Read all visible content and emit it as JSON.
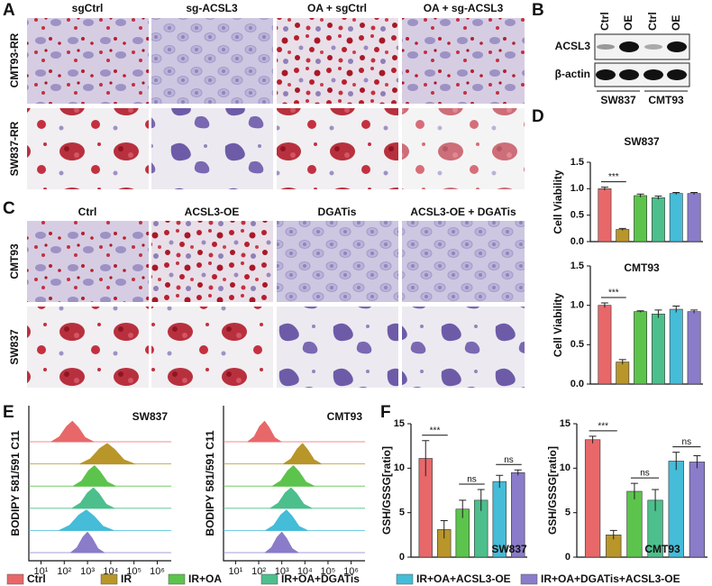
{
  "panel_labels": [
    "A",
    "B",
    "C",
    "D",
    "E",
    "F"
  ],
  "panel_a": {
    "columns": [
      "sgCtrl",
      "sg-ACSL3",
      "OA + sgCtrl",
      "OA + sg-ACSL3"
    ],
    "rows": [
      "CMT93-RR",
      "SW837-RR"
    ]
  },
  "panel_b": {
    "lanes": [
      "Ctrl",
      "OE",
      "Ctrl",
      "OE"
    ],
    "proteins": [
      "ACSL3",
      "β-actin"
    ],
    "cell_lines": [
      "SW837",
      "CMT93"
    ]
  },
  "panel_c": {
    "columns": [
      "Ctrl",
      "ACSL3-OE",
      "DGATis",
      "ACSL3-OE + DGATis"
    ],
    "rows": [
      "CMT93",
      "SW837"
    ]
  },
  "chart_data": [
    {
      "type": "bar",
      "title": "SW837",
      "ylabel": "Cell Viability",
      "categories": [
        null,
        null,
        null,
        null,
        null,
        null
      ],
      "values": [
        1.0,
        0.23,
        0.87,
        0.83,
        0.91,
        0.91
      ],
      "errors": [
        0.03,
        0.02,
        0.03,
        0.03,
        0.02,
        0.02
      ],
      "colors": [
        "#e8686a",
        "#b8962a",
        "#5cc44c",
        "#4cbf8c",
        "#45bcd8",
        "#8a7cc9"
      ],
      "ylim": [
        0,
        1.5
      ],
      "yticks": [
        {
          "value": 0,
          "label": "0.0"
        },
        0.5,
        {
          "value": 1,
          "label": "1.0"
        },
        1.5
      ],
      "annotations": [
        "***"
      ]
    },
    {
      "type": "bar",
      "title": "CMT93",
      "ylabel": "Cell Viability",
      "categories": [
        null,
        null,
        null,
        null,
        null,
        null
      ],
      "values": [
        1.0,
        0.28,
        0.92,
        0.89,
        0.95,
        0.92
      ],
      "errors": [
        0.03,
        0.03,
        0.01,
        0.05,
        0.04,
        0.02
      ],
      "colors": [
        "#e8686a",
        "#b8962a",
        "#5cc44c",
        "#4cbf8c",
        "#45bcd8",
        "#8a7cc9"
      ],
      "ylim": [
        0,
        1.5
      ],
      "yticks": [
        {
          "value": 0,
          "label": "0.0"
        },
        0.5,
        {
          "value": 1,
          "label": "1.0"
        },
        1.5
      ],
      "annotations": [
        "***"
      ]
    },
    {
      "type": "density",
      "title": "SW837",
      "ylabel": "BODIPY 581/591 C11",
      "log_x": true,
      "xlim": [
        3,
        4000000
      ],
      "ylim": [
        0,
        1
      ],
      "xticks": [
        {
          "value": 10,
          "label": "10¹"
        },
        {
          "value": 100,
          "label": "10²"
        },
        {
          "value": 1000,
          "label": "10³"
        },
        {
          "value": 10000,
          "label": "10⁴"
        },
        {
          "value": 100000,
          "label": "10⁵"
        },
        {
          "value": 1000000,
          "label": "10⁶"
        }
      ],
      "series": [
        {
          "name": "Ctrl",
          "color": "#e8686a",
          "x": [
            28,
            63,
            126,
            224,
            398,
            794,
            1778
          ],
          "values": [
            0,
            0.25,
            0.75,
            1,
            0.7,
            0.2,
            0
          ]
        },
        {
          "name": "IR",
          "color": "#b8962a",
          "x": [
            480,
            1350,
            3300,
            7100,
            15000,
            37000,
            105000
          ],
          "values": [
            0,
            0.25,
            0.75,
            1,
            0.7,
            0.2,
            0
          ]
        },
        {
          "name": "IR+OA",
          "color": "#5cc44c",
          "x": [
            250,
            560,
            1100,
            2000,
            3500,
            7100,
            16000
          ],
          "values": [
            0,
            0.25,
            0.75,
            1,
            0.7,
            0.2,
            0
          ]
        },
        {
          "name": "IR+OA+DGATis",
          "color": "#4cbf8c",
          "x": [
            220,
            500,
            1000,
            1800,
            3200,
            6300,
            14000
          ],
          "values": [
            0,
            0.25,
            0.75,
            1,
            0.7,
            0.2,
            0
          ]
        },
        {
          "name": "IR+OA+ACSL3-OE",
          "color": "#45bcd8",
          "x": [
            60,
            170,
            420,
            890,
            1900,
            4700,
            13000
          ],
          "values": [
            0,
            0.25,
            0.75,
            1,
            0.7,
            0.2,
            0
          ]
        },
        {
          "name": "IR+OA+DGATis+ACSL3-OE",
          "color": "#8a7cc9",
          "x": [
            190,
            360,
            630,
            1000,
            1600,
            2800,
            5200
          ],
          "values": [
            0,
            0.25,
            0.75,
            1,
            0.7,
            0.2,
            0
          ]
        }
      ]
    },
    {
      "type": "density",
      "title": "CMT93",
      "ylabel": "BODIPY 581/591 C11",
      "log_x": true,
      "xlim": [
        3,
        4000000
      ],
      "ylim": [
        0,
        1
      ],
      "xticks": [
        {
          "value": 10,
          "label": "10¹"
        },
        {
          "value": 100,
          "label": "10²"
        },
        {
          "value": 1000,
          "label": "10³"
        },
        {
          "value": 10000,
          "label": "10⁴"
        },
        {
          "value": 100000,
          "label": "10⁵"
        },
        {
          "value": 1000000,
          "label": "10⁶"
        }
      ],
      "series": [
        {
          "color": "#e8686a",
          "x": [
            34,
            65,
            110,
            180,
            280,
            490,
            930
          ],
          "values": [
            0,
            0.25,
            0.75,
            1,
            0.7,
            0.2,
            0
          ]
        },
        {
          "color": "#b8962a",
          "x": [
            1200,
            2500,
            4800,
            7900,
            13000,
            25000,
            51000
          ],
          "values": [
            0,
            0.25,
            0.75,
            1,
            0.7,
            0.2,
            0
          ]
        },
        {
          "color": "#5cc44c",
          "x": [
            400,
            890,
            1800,
            3200,
            5600,
            11000,
            25000
          ],
          "values": [
            0,
            0.25,
            0.75,
            1,
            0.7,
            0.2,
            0
          ]
        },
        {
          "color": "#4cbf8c",
          "x": [
            320,
            710,
            1400,
            2500,
            4500,
            8900,
            20000
          ],
          "values": [
            0,
            0.25,
            0.75,
            1,
            0.7,
            0.2,
            0
          ]
        },
        {
          "color": "#45bcd8",
          "x": [
            200,
            450,
            890,
            1600,
            2800,
            5600,
            13000
          ],
          "values": [
            0,
            0.25,
            0.75,
            1,
            0.7,
            0.2,
            0
          ]
        },
        {
          "color": "#8a7cc9",
          "x": [
            190,
            360,
            630,
            1000,
            1600,
            2800,
            5200
          ],
          "values": [
            0,
            0.25,
            0.75,
            1,
            0.7,
            0.2,
            0
          ]
        }
      ]
    },
    {
      "type": "bar",
      "xlabel": "SW837",
      "ylabel": "GSH/GSSG[ratio]",
      "categories": [
        null,
        null,
        null,
        null,
        null,
        null
      ],
      "values": [
        11.1,
        3.1,
        5.4,
        6.4,
        8.5,
        9.5
      ],
      "errors": [
        2.0,
        1.0,
        1.0,
        1.2,
        0.7,
        0.3
      ],
      "colors": [
        "#e8686a",
        "#b8962a",
        "#5cc44c",
        "#4cbf8c",
        "#45bcd8",
        "#8a7cc9"
      ],
      "ylim": [
        0,
        15
      ],
      "yticks": [
        0,
        5,
        10,
        15
      ],
      "annotations": [
        "***",
        "ns",
        "ns"
      ]
    },
    {
      "type": "bar",
      "xlabel": "CMT93",
      "ylabel": "GSH/GSSG[ratio]",
      "categories": [
        null,
        null,
        null,
        null,
        null,
        null
      ],
      "values": [
        13.2,
        2.5,
        7.4,
        6.4,
        10.8,
        10.7
      ],
      "errors": [
        0.4,
        0.5,
        0.9,
        1.2,
        1.0,
        0.7
      ],
      "colors": [
        "#e8686a",
        "#b8962a",
        "#5cc44c",
        "#4cbf8c",
        "#45bcd8",
        "#8a7cc9"
      ],
      "ylim": [
        0,
        15
      ],
      "yticks": [
        0,
        5,
        10,
        15
      ],
      "annotations": [
        "***",
        "ns",
        "ns"
      ]
    }
  ]
}
